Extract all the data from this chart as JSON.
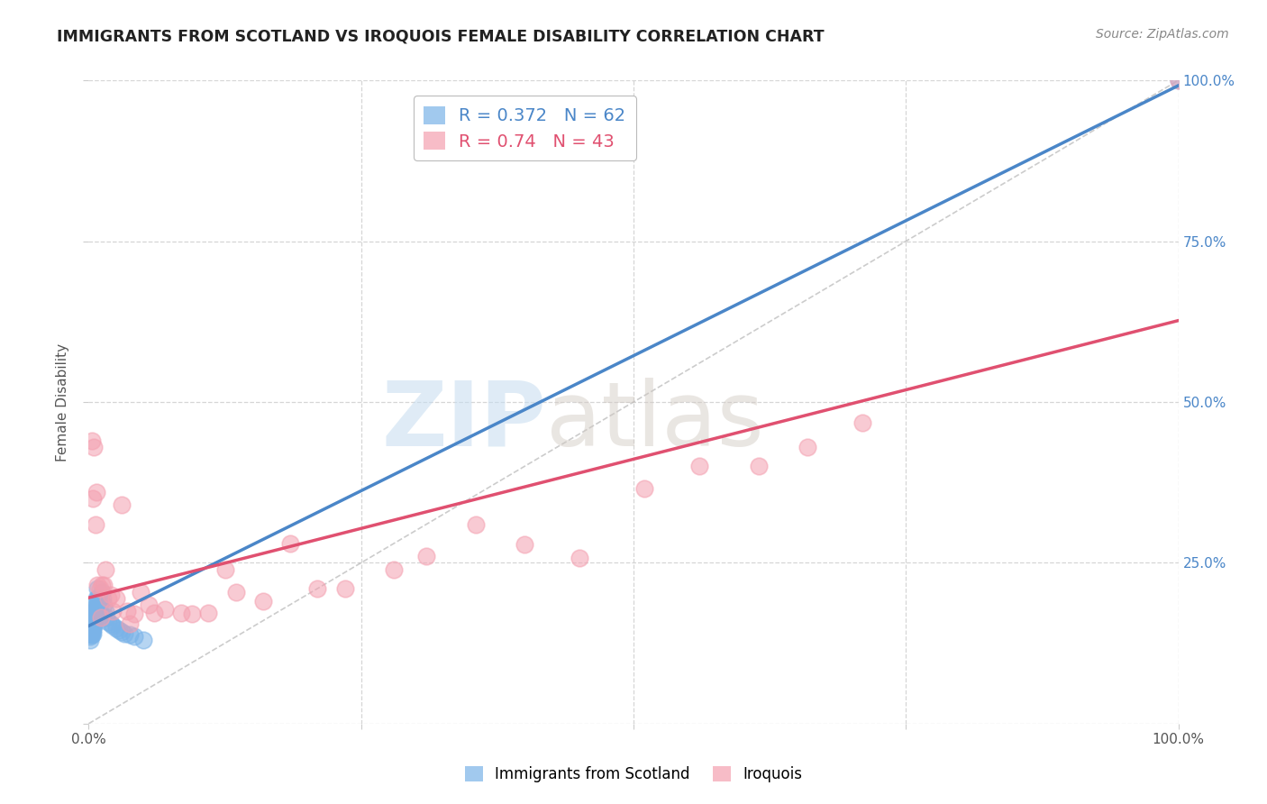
{
  "title": "IMMIGRANTS FROM SCOTLAND VS IROQUOIS FEMALE DISABILITY CORRELATION CHART",
  "source": "Source: ZipAtlas.com",
  "ylabel": "Female Disability",
  "xlim": [
    0,
    1
  ],
  "ylim": [
    0,
    1
  ],
  "scotland_color": "#7ab3e8",
  "iroquois_color": "#f4a0b0",
  "scotland_R": 0.372,
  "scotland_N": 62,
  "iroquois_R": 0.74,
  "iroquois_N": 43,
  "scotland_line_color": "#4a86c8",
  "iroquois_line_color": "#e05070",
  "diagonal_color": "#aaaaaa",
  "watermark_zip": "ZIP",
  "watermark_atlas": "atlas",
  "background_color": "#ffffff",
  "grid_color": "#cccccc",
  "scotland_points_x": [
    0.001,
    0.001,
    0.001,
    0.001,
    0.001,
    0.002,
    0.002,
    0.002,
    0.002,
    0.002,
    0.002,
    0.002,
    0.003,
    0.003,
    0.003,
    0.003,
    0.003,
    0.003,
    0.003,
    0.003,
    0.003,
    0.004,
    0.004,
    0.004,
    0.004,
    0.004,
    0.004,
    0.004,
    0.004,
    0.005,
    0.005,
    0.005,
    0.005,
    0.005,
    0.006,
    0.006,
    0.006,
    0.007,
    0.007,
    0.007,
    0.008,
    0.008,
    0.009,
    0.01,
    0.01,
    0.011,
    0.012,
    0.013,
    0.014,
    0.015,
    0.016,
    0.018,
    0.02,
    0.022,
    0.025,
    0.028,
    0.03,
    0.033,
    0.038,
    0.042,
    0.05,
    1.0
  ],
  "scotland_points_y": [
    0.15,
    0.145,
    0.14,
    0.135,
    0.13,
    0.155,
    0.152,
    0.15,
    0.148,
    0.145,
    0.142,
    0.138,
    0.165,
    0.162,
    0.158,
    0.155,
    0.152,
    0.148,
    0.145,
    0.142,
    0.138,
    0.17,
    0.168,
    0.165,
    0.16,
    0.155,
    0.15,
    0.145,
    0.14,
    0.175,
    0.17,
    0.165,
    0.158,
    0.152,
    0.182,
    0.175,
    0.168,
    0.195,
    0.185,
    0.178,
    0.21,
    0.195,
    0.185,
    0.175,
    0.168,
    0.19,
    0.205,
    0.195,
    0.185,
    0.175,
    0.165,
    0.158,
    0.155,
    0.152,
    0.148,
    0.145,
    0.142,
    0.14,
    0.138,
    0.135,
    0.13,
    1.0
  ],
  "iroquois_points_x": [
    0.003,
    0.004,
    0.005,
    0.006,
    0.007,
    0.008,
    0.01,
    0.011,
    0.012,
    0.014,
    0.015,
    0.018,
    0.02,
    0.022,
    0.025,
    0.03,
    0.035,
    0.038,
    0.042,
    0.048,
    0.055,
    0.06,
    0.07,
    0.085,
    0.095,
    0.11,
    0.125,
    0.135,
    0.16,
    0.185,
    0.21,
    0.235,
    0.28,
    0.31,
    0.355,
    0.4,
    0.45,
    0.51,
    0.56,
    0.615,
    0.66,
    0.71,
    1.0
  ],
  "iroquois_points_y": [
    0.44,
    0.35,
    0.43,
    0.31,
    0.36,
    0.215,
    0.21,
    0.165,
    0.215,
    0.215,
    0.24,
    0.195,
    0.2,
    0.175,
    0.195,
    0.34,
    0.175,
    0.155,
    0.17,
    0.205,
    0.185,
    0.172,
    0.178,
    0.172,
    0.17,
    0.172,
    0.24,
    0.205,
    0.19,
    0.28,
    0.21,
    0.21,
    0.24,
    0.26,
    0.31,
    0.278,
    0.258,
    0.365,
    0.4,
    0.4,
    0.43,
    0.468,
    1.0
  ]
}
